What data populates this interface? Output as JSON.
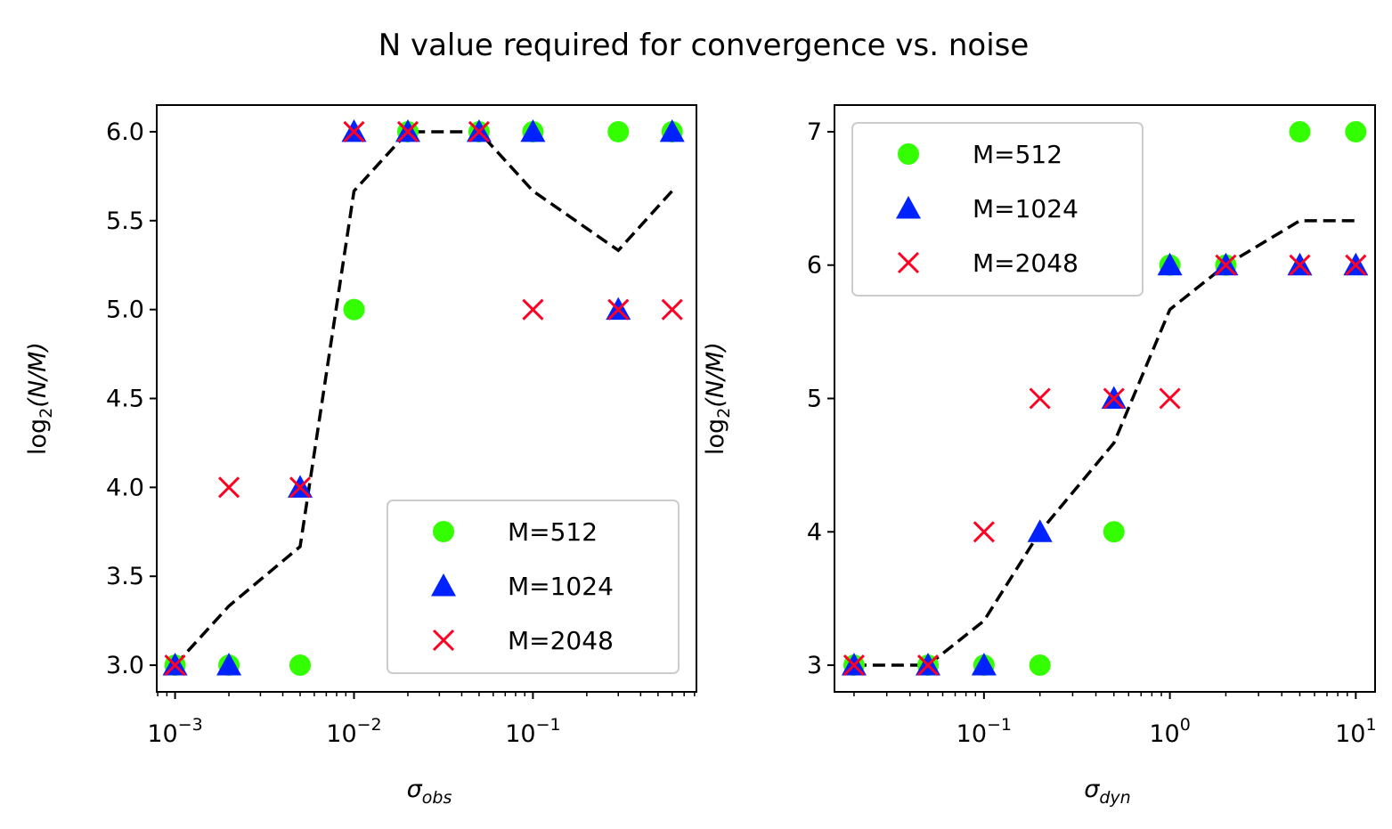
{
  "title": "N value required for convergence vs. noise",
  "colors": {
    "M512": "#33ff00",
    "M1024": "#0022ff",
    "M2048": "#ff0022",
    "trend": "#000000"
  },
  "chart_data": [
    {
      "type": "scatter",
      "xscale": "log",
      "xlabel": {
        "symbol": "σ",
        "sub": "obs"
      },
      "ylabel": {
        "prefix": "log",
        "sub": "2",
        "expr": "(N/M)"
      },
      "xlim": [
        0.00079,
        0.82
      ],
      "ylim": [
        2.85,
        6.15
      ],
      "yticks": [
        3.0,
        3.5,
        4.0,
        4.5,
        5.0,
        5.5,
        6.0
      ],
      "ytick_labels": [
        "3.0",
        "3.5",
        "4.0",
        "4.5",
        "5.0",
        "5.5",
        "6.0"
      ],
      "xticks": [
        0.001,
        0.01,
        0.1
      ],
      "xtick_labels": [
        {
          "base": "10",
          "exp": "−3"
        },
        {
          "base": "10",
          "exp": "−2"
        },
        {
          "base": "10",
          "exp": "−1"
        }
      ],
      "legend_position": "lower-right",
      "series": [
        {
          "name": "M=512",
          "marker": "circle",
          "x": [
            0.001,
            0.002,
            0.005,
            0.01,
            0.02,
            0.05,
            0.1,
            0.3,
            0.6
          ],
          "y": [
            3,
            3,
            3,
            5,
            6,
            6,
            6,
            6,
            6
          ]
        },
        {
          "name": "M=1024",
          "marker": "triangle",
          "x": [
            0.001,
            0.002,
            0.005,
            0.01,
            0.02,
            0.05,
            0.1,
            0.3,
            0.6
          ],
          "y": [
            3,
            3,
            4,
            6,
            6,
            6,
            6,
            5,
            6
          ]
        },
        {
          "name": "M=2048",
          "marker": "x",
          "x": [
            0.001,
            0.002,
            0.005,
            0.01,
            0.02,
            0.05,
            0.1,
            0.3,
            0.6
          ],
          "y": [
            3,
            4,
            4,
            6,
            6,
            6,
            5,
            5,
            5
          ]
        }
      ],
      "trend": {
        "x": [
          0.001,
          0.002,
          0.005,
          0.01,
          0.02,
          0.05,
          0.1,
          0.3,
          0.6
        ],
        "y": [
          3.0,
          3.333,
          3.667,
          5.667,
          6.0,
          6.0,
          5.667,
          5.333,
          5.667
        ]
      }
    },
    {
      "type": "scatter",
      "xscale": "log",
      "xlabel": {
        "symbol": "σ",
        "sub": "dyn"
      },
      "ylabel": {
        "prefix": "log",
        "sub": "2",
        "expr": "(N/M)"
      },
      "xlim": [
        0.0157,
        12.7
      ],
      "ylim": [
        2.8,
        7.2
      ],
      "yticks": [
        3,
        4,
        5,
        6,
        7
      ],
      "ytick_labels": [
        "3",
        "4",
        "5",
        "6",
        "7"
      ],
      "xticks": [
        0.1,
        1,
        10
      ],
      "xtick_labels": [
        {
          "base": "10",
          "exp": "−1"
        },
        {
          "base": "10",
          "exp": "0"
        },
        {
          "base": "10",
          "exp": "1"
        }
      ],
      "legend_position": "upper-left",
      "series": [
        {
          "name": "M=512",
          "marker": "circle",
          "x": [
            0.02,
            0.05,
            0.1,
            0.2,
            0.5,
            1,
            2,
            5,
            10
          ],
          "y": [
            3,
            3,
            3,
            3,
            4,
            6,
            6,
            7,
            7
          ]
        },
        {
          "name": "M=1024",
          "marker": "triangle",
          "x": [
            0.02,
            0.05,
            0.1,
            0.2,
            0.5,
            1,
            2,
            5,
            10
          ],
          "y": [
            3,
            3,
            3,
            4,
            5,
            6,
            6,
            6,
            6
          ]
        },
        {
          "name": "M=2048",
          "marker": "x",
          "x": [
            0.02,
            0.05,
            0.1,
            0.2,
            0.5,
            1,
            2,
            5,
            10
          ],
          "y": [
            3,
            3,
            4,
            5,
            5,
            5,
            6,
            6,
            6
          ]
        }
      ],
      "trend": {
        "x": [
          0.02,
          0.05,
          0.1,
          0.2,
          0.5,
          1,
          2,
          5,
          10
        ],
        "y": [
          3.0,
          3.0,
          3.333,
          4.0,
          4.667,
          5.667,
          6.0,
          6.333,
          6.333
        ]
      }
    }
  ]
}
